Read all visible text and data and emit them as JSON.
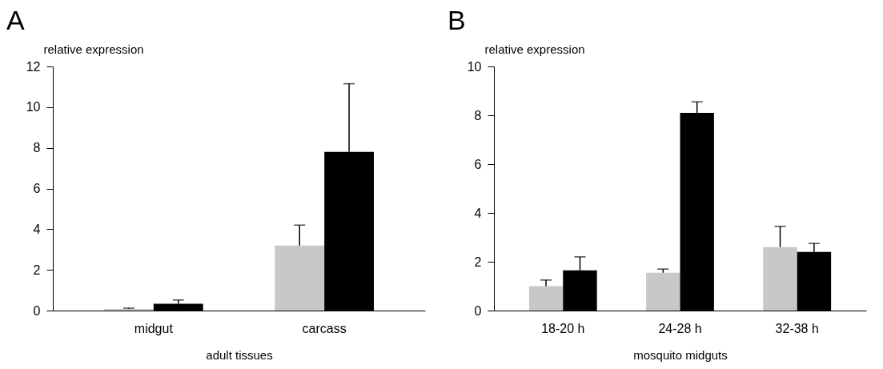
{
  "chart_data": [
    {
      "type": "bar",
      "title": "A",
      "ylabel": "relative expression",
      "xlabel": "adult tissues",
      "categories": [
        "midgut",
        "carcass"
      ],
      "ylim": [
        0,
        12
      ],
      "yticks": [
        0,
        2,
        4,
        6,
        8,
        10,
        12
      ],
      "grid": false,
      "legend": false,
      "series": [
        {
          "color": "#c8c8c8",
          "values": [
            0.08,
            3.2
          ],
          "errors": [
            [
              0.08,
              0.12
            ],
            [
              3.2,
              4.2
            ]
          ]
        },
        {
          "color": "#000000",
          "values": [
            0.33,
            7.8
          ],
          "errors": [
            [
              0.33,
              0.52
            ],
            [
              7.8,
              11.15
            ]
          ]
        }
      ]
    },
    {
      "type": "bar",
      "title": "B",
      "ylabel": "relative expression",
      "xlabel": "mosquito midguts",
      "categories": [
        "18-20 h",
        "24-28 h",
        "32-38 h"
      ],
      "ylim": [
        0,
        10
      ],
      "yticks": [
        0,
        2,
        4,
        6,
        8,
        10
      ],
      "grid": false,
      "legend": false,
      "series": [
        {
          "color": "#c8c8c8",
          "values": [
            1.0,
            1.55,
            2.6
          ],
          "errors": [
            [
              1.0,
              1.25
            ],
            [
              1.55,
              1.7
            ],
            [
              2.6,
              3.45
            ]
          ]
        },
        {
          "color": "#000000",
          "values": [
            1.65,
            8.1,
            2.4
          ],
          "errors": [
            [
              1.65,
              2.2
            ],
            [
              8.1,
              8.55
            ],
            [
              2.4,
              2.75
            ]
          ]
        }
      ]
    }
  ]
}
